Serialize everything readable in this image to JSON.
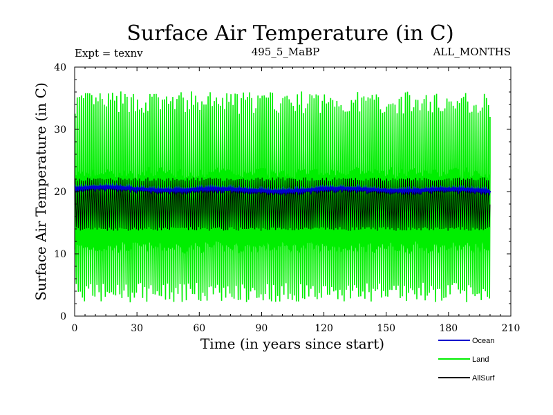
{
  "chart_data": {
    "type": "line",
    "title": "Surface Air Temperature (in C)",
    "subtitle_left": "Expt = texnv",
    "subtitle_center": "495_5_MaBP",
    "subtitle_right": "ALL_MONTHS",
    "xlabel": "Time (in years since start)",
    "ylabel": "Surface Air Temperature (in C)",
    "xlim": [
      0,
      210
    ],
    "ylim": [
      0,
      40
    ],
    "xticks": [
      0,
      30,
      60,
      90,
      120,
      150,
      180,
      210
    ],
    "yticks": [
      0,
      10,
      20,
      30,
      40
    ],
    "xtick_labels": [
      "0",
      "30",
      "60",
      "90",
      "120",
      "150",
      "180",
      "210"
    ],
    "ytick_labels": [
      "0",
      "10",
      "20",
      "30",
      "40"
    ],
    "legend_position": "bottom-right",
    "series": [
      {
        "name": "Land",
        "color": "#00ee00",
        "style": "seasonal-oscillation",
        "x_start": 0,
        "x_end": 200,
        "summer_peak_approx": 35,
        "winter_trough_approx": 4,
        "inner_band": [
          11,
          23
        ]
      },
      {
        "name": "Ocean",
        "color": "#0000cc",
        "x_start": 0,
        "x_end": 200,
        "mean_approx": 20.3,
        "range_approx": [
          19.8,
          21.0
        ]
      },
      {
        "name": "AllSurf",
        "color": "#000000",
        "x_start": 0,
        "x_end": 200
      }
    ],
    "legend": [
      {
        "name": "Ocean",
        "color": "#0000cc"
      },
      {
        "name": "Land",
        "color": "#00ee00"
      },
      {
        "name": "AllSurf",
        "color": "#000000"
      }
    ]
  }
}
